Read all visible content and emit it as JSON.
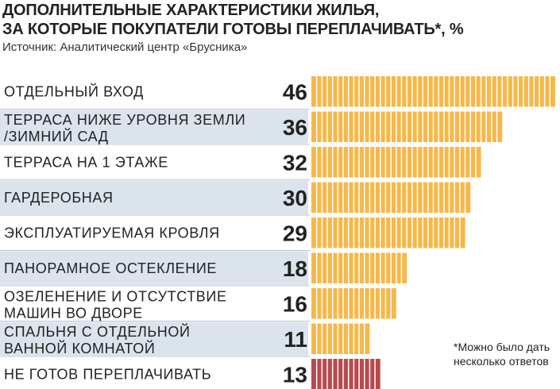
{
  "title_lines": [
    "ДОПОЛНИТЕЛЬНЫЕ ХАРАКТЕРИСТИКИ ЖИЛЬЯ,",
    "ЗА КОТОРЫЕ ПОКУПАТЕЛИ ГОТОВЫ ПЕРЕПЛАЧИВАТЬ*, %"
  ],
  "source": "Источник: Аналитический центр «Брусника»",
  "footnote": "*Можно было дать несколько ответов",
  "colors": {
    "bar": "#f6b84a",
    "bar_highlight": "#b84a4f",
    "row_band": "#dbe3ec",
    "text": "#222222"
  },
  "chart_data": {
    "type": "bar",
    "orientation": "horizontal",
    "unit": "%",
    "categories": [
      [
        "ОТДЕЛЬНЫЙ ВХОД"
      ],
      [
        "ТЕРРАСА НИЖЕ УРОВНЯ ЗЕМЛИ",
        "/ЗИМНИЙ САД"
      ],
      [
        "ТЕРРАСА НА 1 ЭТАЖЕ"
      ],
      [
        "ГАРДЕРОБНАЯ"
      ],
      [
        "ЭКСПЛУАТИРУЕМАЯ КРОВЛЯ"
      ],
      [
        "ПАНОРАМНОЕ ОСТЕКЛЕНИЕ"
      ],
      [
        "ОЗЕЛЕНЕНИЕ И ОТСУТСТВИЕ",
        "МАШИН ВО ДВОРЕ"
      ],
      [
        "СПАЛЬНЯ С ОТДЕЛЬНОЙ",
        "ВАННОЙ КОМНАТОЙ"
      ],
      [
        "НЕ ГОТОВ ПЕРЕПЛАЧИВАТЬ"
      ]
    ],
    "values": [
      46,
      36,
      32,
      30,
      29,
      18,
      16,
      11,
      13
    ],
    "highlight_index": 8,
    "xlim": [
      0,
      46
    ],
    "grid": false,
    "legend": "none"
  }
}
